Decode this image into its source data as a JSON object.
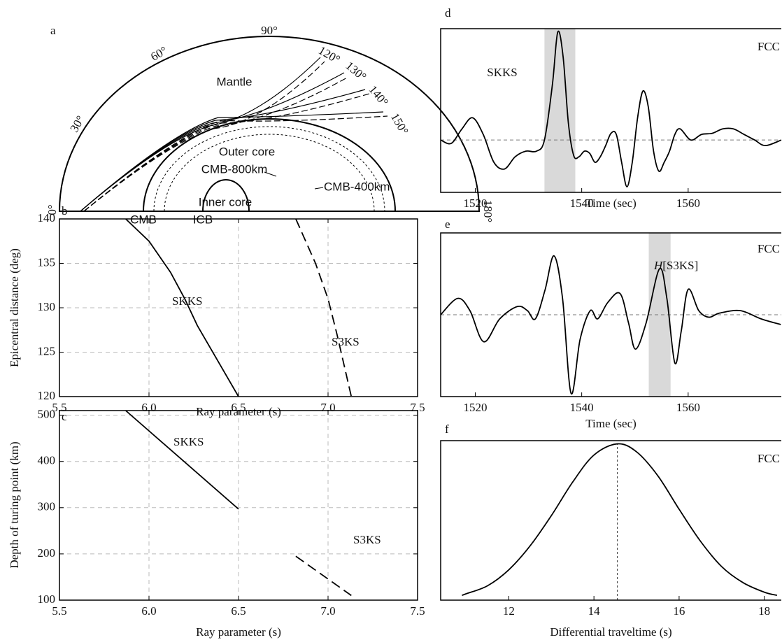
{
  "chart_data": [
    {
      "panel": "a",
      "type": "diagram",
      "angle_labels": [
        {
          "value": 0,
          "label": "0°"
        },
        {
          "value": 30,
          "label": "30°"
        },
        {
          "value": 60,
          "label": "60°"
        },
        {
          "value": 90,
          "label": "90°"
        },
        {
          "value": 120,
          "label": "120°"
        },
        {
          "value": 130,
          "label": "130°"
        },
        {
          "value": 140,
          "label": "140°"
        },
        {
          "value": 150,
          "label": "150°"
        },
        {
          "value": 180,
          "label": "180°"
        }
      ],
      "regions": {
        "mantle": "Mantle",
        "outer_core": "Outer core",
        "inner_core": "Inner core",
        "cmb_800": "CMB-800km",
        "cmb_400": "CMB-400km",
        "cmb": "CMB",
        "icb": "ICB"
      }
    },
    {
      "panel": "b",
      "type": "line",
      "xlabel": "Ray parameter (s)",
      "ylabel": "Epicentral distance (deg)",
      "xlim": [
        5.5,
        7.5
      ],
      "ylim": [
        120,
        140
      ],
      "xticks": [
        5.5,
        {
          "value": 6,
          "label": "6.0"
        },
        6.5,
        {
          "value": 7,
          "label": "7.0"
        },
        7.5
      ],
      "yticks": [
        120,
        125,
        130,
        135,
        140
      ],
      "grid": true,
      "series": [
        {
          "name": "SKKS",
          "color": "#000000",
          "dash": "solid",
          "x": [
            5.87,
            6.0,
            6.12,
            6.2,
            6.27,
            6.5
          ],
          "values": [
            140,
            137.5,
            134,
            131,
            128,
            120
          ]
        },
        {
          "name": "S3KS",
          "color": "#000000",
          "dash": "dashed",
          "x": [
            6.82,
            6.93,
            7.0,
            7.05,
            7.13
          ],
          "values": [
            140,
            135,
            131,
            127,
            120
          ]
        }
      ]
    },
    {
      "panel": "c",
      "type": "line",
      "xlabel": "Ray parameter (s)",
      "ylabel": "Depth of turing point (km)",
      "xlim": [
        5.5,
        7.5
      ],
      "ylim": [
        100,
        510
      ],
      "xticks": [
        5.5,
        {
          "value": 6,
          "label": "6.0"
        },
        6.5,
        {
          "value": 7,
          "label": "7.0"
        },
        7.5
      ],
      "yticks": [
        100,
        200,
        300,
        400,
        500
      ],
      "grid": true,
      "series": [
        {
          "name": "SKKS",
          "color": "#000000",
          "dash": "solid",
          "x": [
            5.87,
            6.5
          ],
          "values": [
            510,
            297
          ]
        },
        {
          "name": "S3KS",
          "color": "#000000",
          "dash": "dashed",
          "x": [
            6.82,
            7.13
          ],
          "values": [
            195,
            110
          ]
        }
      ]
    },
    {
      "panel": "d",
      "type": "line",
      "xlabel": "Time (sec)",
      "xlim": [
        1513.5,
        1577.5
      ],
      "ylim": [
        -0.47,
        1
      ],
      "xticks": [
        1520,
        1540,
        1560
      ],
      "zero_line": true,
      "smooth": true,
      "shade": [
        1533,
        1538.8
      ],
      "annotation": "SKKS",
      "station": "FCC",
      "series": [
        {
          "color": "#000000",
          "x": [
            1513.5,
            1515.5,
            1517.5,
            1519.5,
            1521.5,
            1523.5,
            1525.5,
            1527.5,
            1529.5,
            1531.5,
            1533,
            1534.5,
            1535.5,
            1536.5,
            1537.5,
            1538.5,
            1539.5,
            1540.5,
            1541.5,
            1542.5,
            1543.5,
            1544.5,
            1545.5,
            1546.5,
            1547.5,
            1548.5,
            1549.5,
            1550.5,
            1551.5,
            1552.5,
            1553.5,
            1554.5,
            1555.5,
            1556.5,
            1557.5,
            1558.5,
            1560.5,
            1562.5,
            1564.5,
            1566.5,
            1568.5,
            1570.5,
            1572.5,
            1574.5,
            1577.5
          ],
          "values": [
            0,
            -0.03,
            0.1,
            0.2,
            0.05,
            -0.2,
            -0.26,
            -0.15,
            -0.1,
            -0.1,
            0,
            0.5,
            0.97,
            0.75,
            0.15,
            -0.14,
            -0.15,
            -0.1,
            -0.12,
            -0.2,
            -0.15,
            -0.05,
            0.06,
            0.05,
            -0.2,
            -0.42,
            -0.2,
            0.2,
            0.44,
            0.3,
            -0.1,
            -0.28,
            -0.2,
            -0.1,
            0.05,
            0.1,
            0,
            0.05,
            0.06,
            0.1,
            0.1,
            0.05,
            0,
            -0.05,
            0
          ]
        }
      ]
    },
    {
      "panel": "e",
      "type": "line",
      "xlabel": "Time (sec)",
      "xlim": [
        1513.5,
        1577.5
      ],
      "ylim": [
        -1,
        1
      ],
      "xticks": [
        1520,
        1540,
        1560
      ],
      "zero_line": true,
      "smooth": true,
      "shade": [
        1552.6,
        1556.7
      ],
      "annotation_prefix": "H",
      "annotation": "[S3KS]",
      "station": "FCC",
      "series": [
        {
          "color": "#000000",
          "x": [
            1513.5,
            1516.7,
            1519,
            1521.6,
            1524.6,
            1527.9,
            1529.8,
            1531.3,
            1533.1,
            1534.8,
            1536.4,
            1538,
            1539.7,
            1541.6,
            1543,
            1544.9,
            1547.2,
            1548.8,
            1550.1,
            1552.1,
            1554.6,
            1556,
            1557.5,
            1558.7,
            1560,
            1562,
            1563.9,
            1565.9,
            1569.8,
            1573.7,
            1577.4
          ],
          "values": [
            0,
            0.2,
            0.05,
            -0.33,
            -0.05,
            0.1,
            0.05,
            -0.05,
            0.3,
            0.72,
            0.2,
            -0.96,
            -0.3,
            0.05,
            -0.05,
            0.15,
            0.26,
            -0.1,
            -0.42,
            -0.1,
            0.56,
            0.2,
            -0.59,
            -0.2,
            0.31,
            0.05,
            -0.03,
            0.02,
            0.05,
            -0.05,
            -0.12
          ]
        }
      ]
    },
    {
      "panel": "f",
      "type": "line",
      "xlabel": "Differential traveltime (s)",
      "xlim": [
        10.4,
        18.4
      ],
      "ylim": [
        0,
        1
      ],
      "xticks": [
        12,
        14,
        16,
        18
      ],
      "smooth": true,
      "peak_x": 14.55,
      "station": "FCC",
      "series": [
        {
          "color": "#000000",
          "x": [
            10.9,
            11,
            11.5,
            12,
            12.5,
            13,
            13.5,
            14,
            14.55,
            15,
            15.5,
            16,
            16.5,
            17,
            17.5,
            18,
            18.3
          ],
          "values": [
            0.03,
            0.04,
            0.09,
            0.19,
            0.34,
            0.53,
            0.74,
            0.91,
            0.98,
            0.93,
            0.78,
            0.57,
            0.37,
            0.21,
            0.11,
            0.05,
            0.03
          ]
        }
      ]
    }
  ]
}
